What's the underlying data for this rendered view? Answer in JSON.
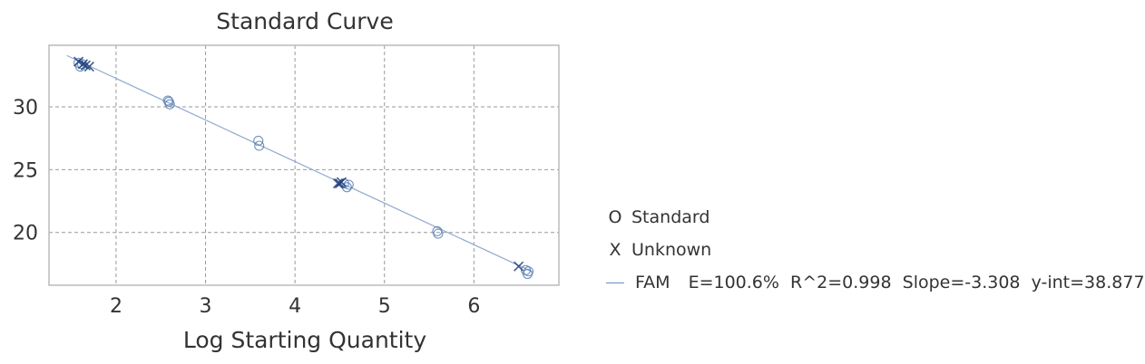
{
  "chart_data": {
    "type": "scatter",
    "title": "Standard Curve",
    "xlabel": "Log Starting Quantity",
    "ylabel": "",
    "xlim": [
      1.25,
      6.95
    ],
    "ylim": [
      15.8,
      34.9
    ],
    "xticks": [
      2,
      3,
      4,
      5,
      6
    ],
    "yticks": [
      20,
      25,
      30
    ],
    "grid": true,
    "legend_position": "right",
    "series": [
      {
        "name": "Standard",
        "marker": "O",
        "points": [
          {
            "x": 1.58,
            "y": 33.5
          },
          {
            "x": 1.6,
            "y": 33.2
          },
          {
            "x": 1.62,
            "y": 33.4
          },
          {
            "x": 2.58,
            "y": 30.5
          },
          {
            "x": 2.6,
            "y": 30.2
          },
          {
            "x": 2.59,
            "y": 30.4
          },
          {
            "x": 3.59,
            "y": 27.3
          },
          {
            "x": 3.6,
            "y": 26.9
          },
          {
            "x": 4.55,
            "y": 23.9
          },
          {
            "x": 4.58,
            "y": 23.6
          },
          {
            "x": 4.6,
            "y": 23.8
          },
          {
            "x": 5.59,
            "y": 20.1
          },
          {
            "x": 5.6,
            "y": 19.9
          },
          {
            "x": 6.58,
            "y": 17.0
          },
          {
            "x": 6.6,
            "y": 16.7
          },
          {
            "x": 6.61,
            "y": 16.9
          }
        ]
      },
      {
        "name": "Unknown",
        "marker": "X",
        "points": [
          {
            "x": 1.63,
            "y": 33.4
          },
          {
            "x": 1.66,
            "y": 33.3
          },
          {
            "x": 1.7,
            "y": 33.2
          },
          {
            "x": 1.58,
            "y": 33.6
          },
          {
            "x": 4.48,
            "y": 23.9
          },
          {
            "x": 4.5,
            "y": 23.9
          },
          {
            "x": 4.52,
            "y": 24.0
          },
          {
            "x": 6.5,
            "y": 17.3
          }
        ]
      }
    ],
    "fit": {
      "name": "FAM",
      "label": "E=100.6%  R^2=0.998  Slope=-3.308  y-int=38.877",
      "slope": -3.308,
      "intercept": 38.877,
      "x_range": [
        1.45,
        6.65
      ]
    },
    "colors": {
      "standard": "#5b7fb5",
      "unknown": "#1f3f7a",
      "fit": "#8fa9cf",
      "grid": "#999999",
      "frame": "#bbbbbb"
    }
  }
}
